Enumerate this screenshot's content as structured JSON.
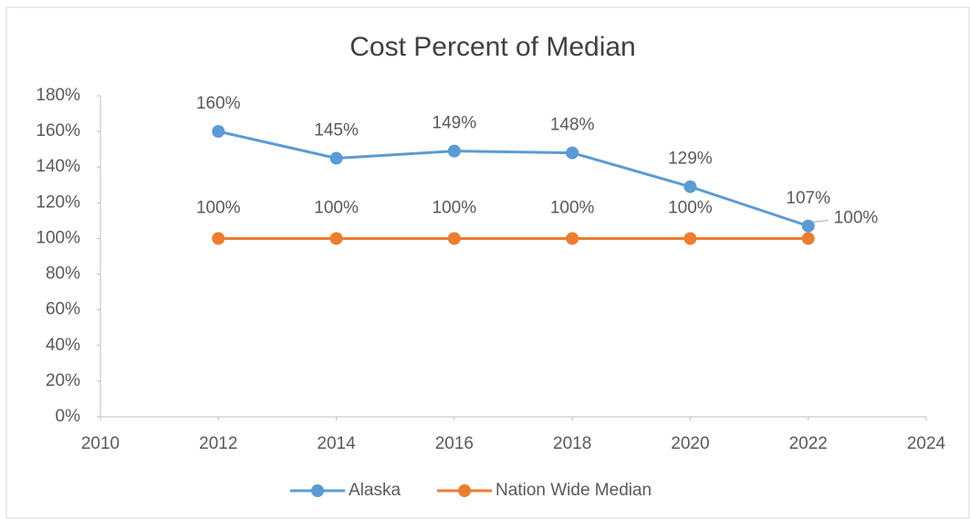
{
  "chart_data": {
    "type": "line",
    "title": "Cost Percent of Median",
    "x": [
      2012,
      2014,
      2016,
      2018,
      2020,
      2022
    ],
    "series": [
      {
        "name": "Alaska",
        "color": "#5b9bd5",
        "values": [
          160,
          145,
          149,
          148,
          129,
          107
        ],
        "value_labels": [
          "160%",
          "145%",
          "149%",
          "148%",
          "129%",
          "107%"
        ]
      },
      {
        "name": "Nation Wide Median",
        "color": "#ed7d31",
        "values": [
          100,
          100,
          100,
          100,
          100,
          100
        ],
        "value_labels": [
          "100%",
          "100%",
          "100%",
          "100%",
          "100%",
          "100%"
        ]
      }
    ],
    "xlim": [
      2010,
      2024
    ],
    "xticks": [
      2010,
      2012,
      2014,
      2016,
      2018,
      2020,
      2022,
      2024
    ],
    "ylim": [
      0,
      180
    ],
    "yticks": [
      {
        "value": 0,
        "label": "0%"
      },
      {
        "value": 20,
        "label": "20%"
      },
      {
        "value": 40,
        "label": "40%"
      },
      {
        "value": 60,
        "label": "60%"
      },
      {
        "value": 80,
        "label": "80%"
      },
      {
        "value": 100,
        "label": "100%"
      },
      {
        "value": 120,
        "label": "120%"
      },
      {
        "value": 140,
        "label": "140%"
      },
      {
        "value": 160,
        "label": "160%"
      },
      {
        "value": 180,
        "label": "180%"
      }
    ],
    "legend": "bottom"
  }
}
